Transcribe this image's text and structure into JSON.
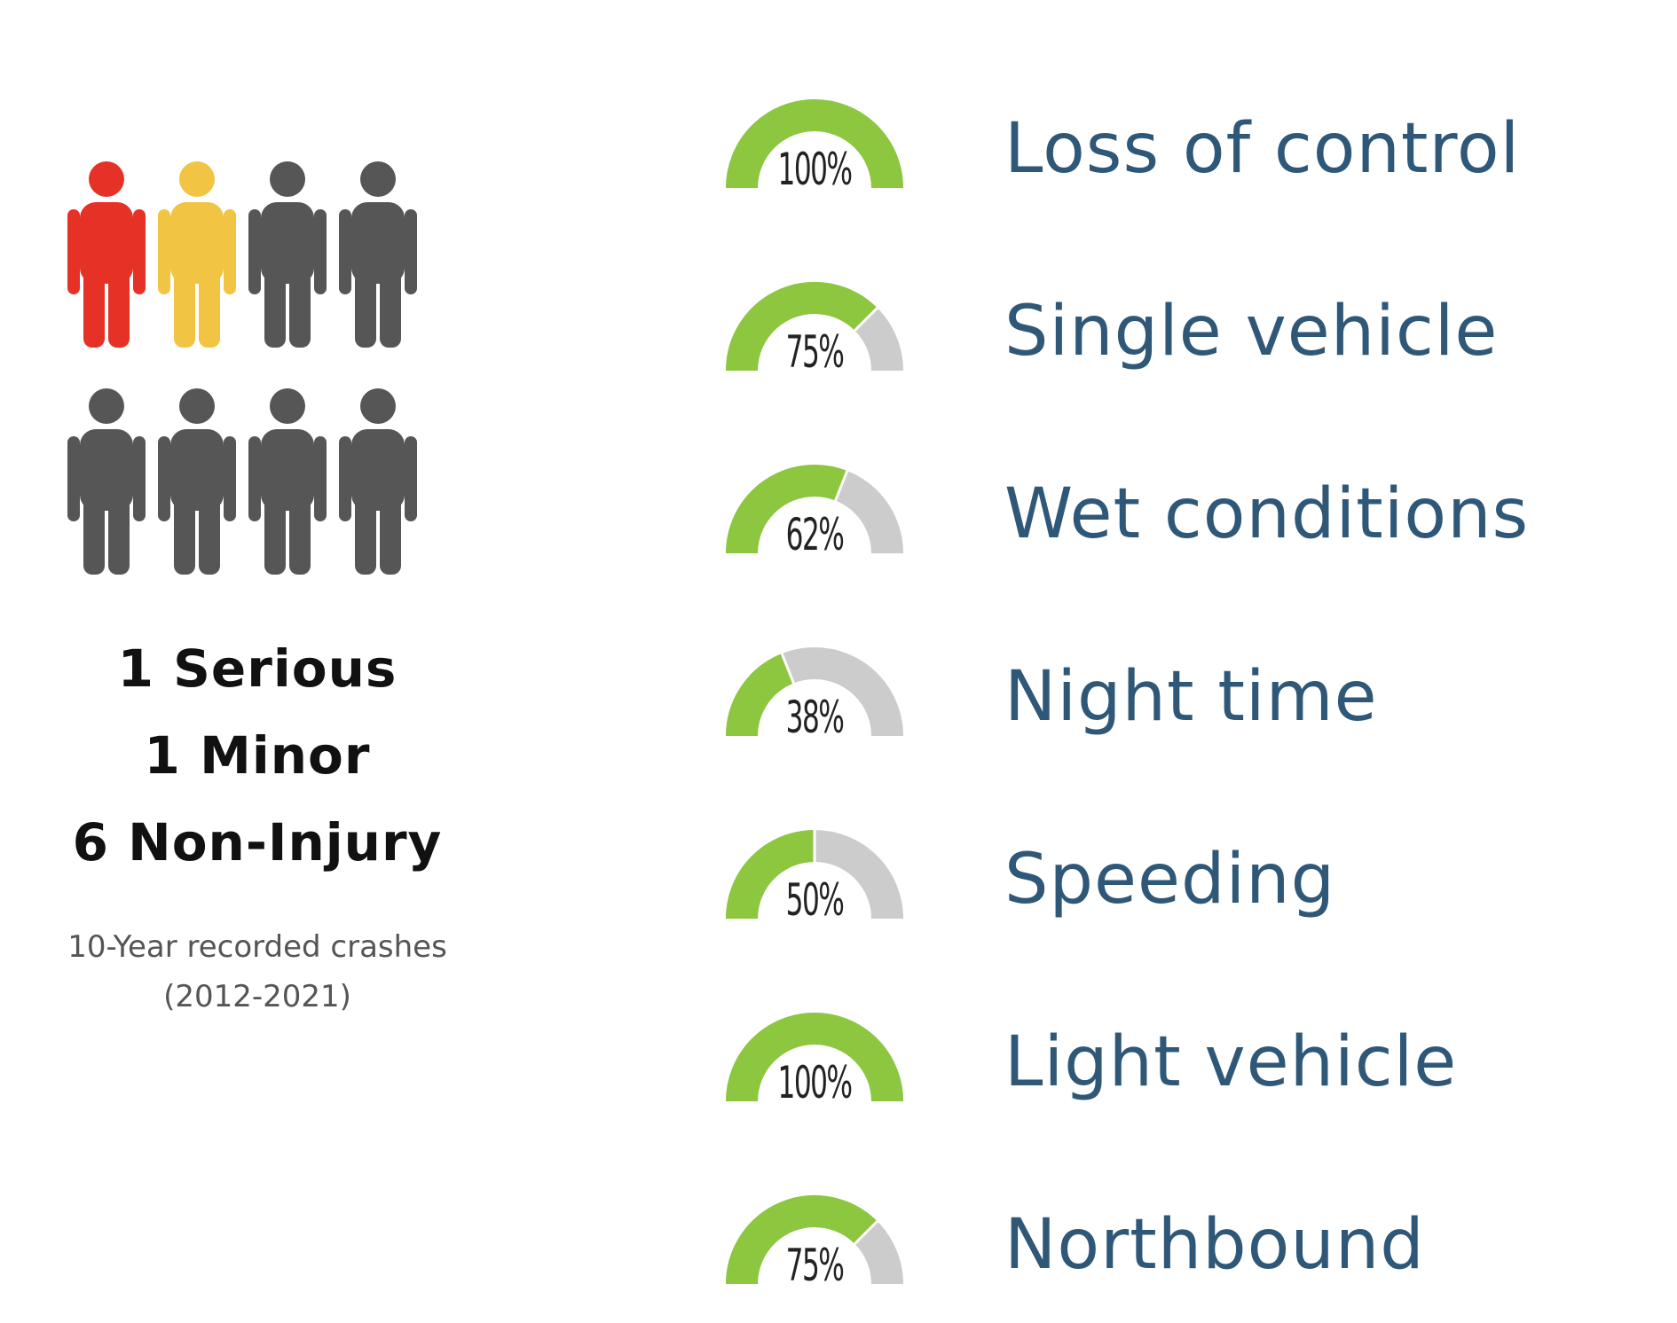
{
  "people": {
    "rows": [
      [
        {
          "status": "serious",
          "color": "#e63226"
        },
        {
          "status": "minor",
          "color": "#f2c443"
        },
        {
          "status": "non-injury",
          "color": "#565656"
        },
        {
          "status": "non-injury",
          "color": "#565656"
        }
      ],
      [
        {
          "status": "non-injury",
          "color": "#565656"
        },
        {
          "status": "non-injury",
          "color": "#565656"
        },
        {
          "status": "non-injury",
          "color": "#565656"
        },
        {
          "status": "non-injury",
          "color": "#565656"
        }
      ]
    ],
    "icon": "person-icon"
  },
  "summary": {
    "serious": "1 Serious",
    "minor": "1 Minor",
    "non_injury": "6 Non-Injury"
  },
  "caption": {
    "line1": "10-Year recorded crashes",
    "line2": "(2012-2021)"
  },
  "colors": {
    "gauge_fill": "#8dc63f",
    "gauge_track": "#cccccc",
    "label": "#2f5878",
    "serious": "#e63226",
    "minor": "#f2c443",
    "non_injury": "#565656"
  },
  "chart_data": {
    "type": "gauge",
    "ylim": [
      0,
      100
    ],
    "categories": [
      "Loss of control",
      "Single vehicle",
      "Wet conditions",
      "Night time",
      "Speeding",
      "Light vehicle",
      "Northbound"
    ],
    "values": [
      100,
      75,
      62,
      38,
      50,
      100,
      75
    ],
    "value_labels": [
      "100%",
      "75%",
      "62%",
      "38%",
      "50%",
      "100%",
      "75%"
    ]
  }
}
